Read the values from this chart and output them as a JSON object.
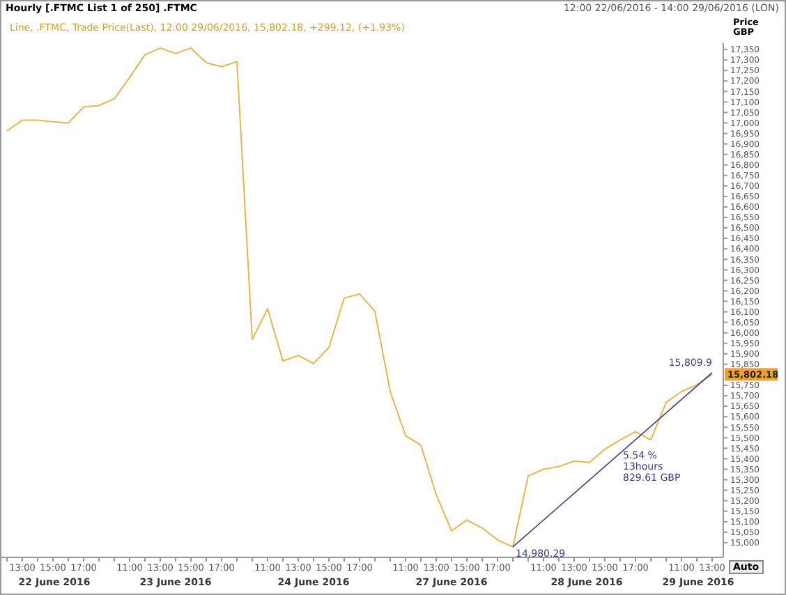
{
  "chart_data": {
    "type": "line",
    "title": "Hourly [.FTMC List 1 of 250] .FTMC",
    "subtitle": "12:00 22/06/2016 - 14:00 29/06/2016 (LON)",
    "ylabel": "Price\nGBP",
    "annotations": [
      "Line, .FTMC, Trade Price(Last), 12:00 29/06/2016, 15,802.18, +299.12, (+1.93%)",
      "Auto",
      "14,980.29",
      "15,809.9",
      "5.54 %\n13hours\n829.61 GBP",
      "15,802.18",
      "22 June 2016",
      "23 June 2016",
      "24 June 2016",
      "27 June 2016",
      "28 June 2016",
      "29 June 2016"
    ],
    "categories": [
      null,
      "13:00",
      null,
      "15:00",
      null,
      "17:00",
      null,
      null,
      "11:00",
      null,
      "13:00",
      null,
      "15:00",
      null,
      "17:00",
      null,
      null,
      "11:00",
      null,
      "13:00",
      null,
      "15:00",
      null,
      "17:00",
      null,
      null,
      "11:00",
      null,
      "13:00",
      null,
      "15:00",
      null,
      "17:00",
      null,
      null,
      "11:00",
      null,
      "13:00",
      null,
      "15:00",
      null,
      "17:00",
      null,
      null,
      "11:00",
      null,
      "13:00"
    ],
    "series": [
      {
        "color": "#e8b64c",
        "values": [
          16962,
          17013,
          17013,
          17006,
          17000,
          17076,
          17083,
          17115,
          17217,
          17325,
          17357,
          17331,
          17357,
          17287,
          17268,
          17293,
          15968,
          16115,
          15866,
          15892,
          15854,
          15930,
          16166,
          16185,
          16102,
          15720,
          15510,
          15465,
          15229,
          15057,
          15108,
          15070,
          15013,
          14980,
          15318,
          15350,
          15363,
          15389,
          15382,
          15446,
          15490,
          15529,
          15490,
          15669,
          15720,
          15752,
          15802
        ]
      },
      {
        "type": "line",
        "color": "#3c3c8c",
        "values": [
          null,
          null,
          null,
          null,
          null,
          null,
          null,
          null,
          null,
          null,
          null,
          null,
          null,
          null,
          null,
          null,
          null,
          null,
          null,
          null,
          null,
          null,
          null,
          null,
          null,
          null,
          null,
          null,
          null,
          null,
          null,
          null,
          null,
          14980,
          null,
          null,
          null,
          null,
          null,
          null,
          null,
          null,
          null,
          null,
          null,
          null,
          15810
        ]
      }
    ],
    "ylim": [
      14930,
      17380
    ],
    "yticks": [
      {
        "value": 15000,
        "label": "15,000"
      },
      {
        "value": 15050,
        "label": "15,050"
      },
      {
        "value": 15100,
        "label": "15,100"
      },
      {
        "value": 15150,
        "label": "15,150"
      },
      {
        "value": 15200,
        "label": "15,200"
      },
      {
        "value": 15250,
        "label": "15,250"
      },
      {
        "value": 15300,
        "label": "15,300"
      },
      {
        "value": 15350,
        "label": "15,350"
      },
      {
        "value": 15400,
        "label": "15,400"
      },
      {
        "value": 15450,
        "label": "15,450"
      },
      {
        "value": 15500,
        "label": "15,500"
      },
      {
        "value": 15550,
        "label": "15,550"
      },
      {
        "value": 15600,
        "label": "15,600"
      },
      {
        "value": 15650,
        "label": "15,650"
      },
      {
        "value": 15700,
        "label": "15,700"
      },
      {
        "value": 15750,
        "label": "15,750"
      },
      {
        "value": 15850,
        "label": "15,850"
      },
      {
        "value": 15900,
        "label": "15,900"
      },
      {
        "value": 15950,
        "label": "15,950"
      },
      {
        "value": 16000,
        "label": "16,000"
      },
      {
        "value": 16050,
        "label": "16,050"
      },
      {
        "value": 16100,
        "label": "16,100"
      },
      {
        "value": 16150,
        "label": "16,150"
      },
      {
        "value": 16200,
        "label": "16,200"
      },
      {
        "value": 16250,
        "label": "16,250"
      },
      {
        "value": 16300,
        "label": "16,300"
      },
      {
        "value": 16350,
        "label": "16,350"
      },
      {
        "value": 16400,
        "label": "16,400"
      },
      {
        "value": 16450,
        "label": "16,450"
      },
      {
        "value": 16500,
        "label": "16,500"
      },
      {
        "value": 16550,
        "label": "16,550"
      },
      {
        "value": 16600,
        "label": "16,600"
      },
      {
        "value": 16650,
        "label": "16,650"
      },
      {
        "value": 16700,
        "label": "16,700"
      },
      {
        "value": 16750,
        "label": "16,750"
      },
      {
        "value": 16800,
        "label": "16,800"
      },
      {
        "value": 16850,
        "label": "16,850"
      },
      {
        "value": 16900,
        "label": "16,900"
      },
      {
        "value": 16950,
        "label": "16,950"
      },
      {
        "value": 17000,
        "label": "17,000"
      },
      {
        "value": 17050,
        "label": "17,050"
      },
      {
        "value": 17100,
        "label": "17,100"
      },
      {
        "value": 17150,
        "label": "17,150"
      },
      {
        "value": 17200,
        "label": "17,200"
      },
      {
        "value": 17250,
        "label": "17,250"
      },
      {
        "value": 17300,
        "label": "17,300"
      },
      {
        "value": 17350,
        "label": "17,350"
      }
    ],
    "grid": false,
    "marker": "none",
    "line_style": "solid"
  }
}
